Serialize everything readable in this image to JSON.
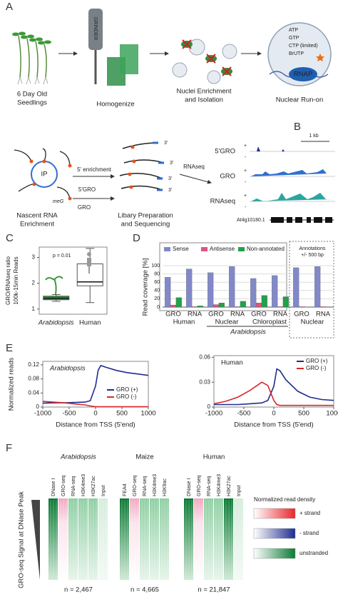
{
  "panel_a": {
    "label": "A",
    "grinder": "GRINDER",
    "seedlings": [
      "6 Day Old",
      "Seedlings"
    ],
    "homogenize": "Homogenize",
    "nuclei": [
      "Nuclei Enrichment",
      "and Isolation"
    ],
    "run_on": "Nuclear Run-on",
    "nucleotides": [
      "ATP",
      "GTP",
      "CTP (limited)",
      "BrUTP"
    ],
    "rnap": "RNAP"
  },
  "panel_b": {
    "label": "B",
    "ip": "IP",
    "enrichment": "5' enrichment",
    "gro5": "5'GRO",
    "gro": "GRO",
    "meg": "meG",
    "nascent": [
      "Nascent RNA",
      "Enrichment"
    ],
    "library": [
      "Libary Preparation",
      "and Sequencing"
    ],
    "three_prime": "3'",
    "rnaseq": "RNAseq",
    "scale": "1 kb",
    "tracks": [
      "5'GRO",
      "GRO",
      "RNAseq"
    ],
    "plus": "+",
    "minus": "-",
    "gene": "At4g10180.1"
  },
  "chart_data": [
    {
      "type": "box",
      "label": "C",
      "y_label": [
        "GRO/RNAseq ratio",
        "100k-15min Reads"
      ],
      "annotation": "p = 0.01",
      "categories": [
        "Arabidopsis",
        "Human"
      ],
      "colors": [
        "#2f9a3e",
        "#ffffff"
      ],
      "boxes": [
        {
          "min": 1.3,
          "q1": 1.36,
          "median": 1.42,
          "q3": 1.5,
          "max": 1.56
        },
        {
          "min": 1.25,
          "q1": 1.9,
          "median": 2.05,
          "q3": 2.75,
          "max": 3.35
        }
      ],
      "ylim": [
        0.8,
        3.4
      ],
      "yticks": [
        1,
        2,
        3
      ]
    },
    {
      "type": "bar",
      "label": "D",
      "y_label": "Read coverage [%]",
      "categories": [
        "GRO",
        "RNA",
        "GRO",
        "RNA",
        "GRO",
        "RNA",
        "GRO",
        "RNA"
      ],
      "groups": [
        {
          "name": "Human",
          "size": 2
        },
        {
          "name": "Nuclear",
          "size": 2
        },
        {
          "name": "Chloroplast",
          "size": 2
        },
        {
          "name": "Nuclear",
          "size": 2
        }
      ],
      "super_group": "Arabidopsis",
      "annotation": [
        "Annotations",
        "+/- 500 bp"
      ],
      "series": [
        {
          "name": "Sense",
          "color": "#8189c9",
          "values": [
            72,
            92,
            83,
            98,
            69,
            76,
            95,
            98
          ]
        },
        {
          "name": "Antisense",
          "color": "#e0557c",
          "values": [
            5,
            1,
            6,
            1,
            10,
            1,
            1,
            1
          ]
        },
        {
          "name": "Non-annotated",
          "color": "#22a04a",
          "values": [
            23,
            3,
            10,
            14,
            28,
            25,
            0,
            0
          ]
        }
      ],
      "ylim": [
        0,
        100
      ],
      "yticks": [
        0,
        20,
        40,
        60,
        80,
        100
      ]
    },
    {
      "type": "line",
      "label": "E",
      "title": "Arabidopsis",
      "y_label": "Normalized reads",
      "x_label": "Distance from TSS (5'end)",
      "x": [
        -1000,
        -800,
        -600,
        -400,
        -200,
        -100,
        0,
        50,
        100,
        200,
        400,
        600,
        800,
        1000
      ],
      "series": [
        {
          "name": "GRO (+)",
          "color": "#1f2d8f",
          "values": [
            0.011,
            0.012,
            0.012,
            0.013,
            0.014,
            0.018,
            0.06,
            0.105,
            0.118,
            0.113,
            0.104,
            0.098,
            0.094,
            0.09
          ]
        },
        {
          "name": "GRO (-)",
          "color": "#d8262b",
          "values": [
            0.016,
            0.014,
            0.012,
            0.009,
            0.006,
            0.003,
            0.001,
            0.001,
            0.001,
            0.001,
            0.001,
            0.001,
            0.001,
            0.001
          ]
        }
      ],
      "xlim": [
        -1000,
        1000
      ],
      "xticks": [
        -1000,
        -500,
        0,
        500,
        1000
      ],
      "ylim": [
        0,
        0.13
      ],
      "yticks": [
        0,
        0.04,
        0.08,
        0.12
      ],
      "legend": "center-right"
    },
    {
      "type": "line",
      "title": "Human",
      "x_label": "Distance from TSS (5'end)",
      "x": [
        -1000,
        -800,
        -600,
        -400,
        -200,
        -100,
        0,
        50,
        100,
        200,
        400,
        600,
        800,
        1000
      ],
      "series": [
        {
          "name": "GRO (+)",
          "color": "#1f2d8f",
          "values": [
            0.003,
            0.003,
            0.003,
            0.004,
            0.005,
            0.008,
            0.025,
            0.046,
            0.044,
            0.033,
            0.019,
            0.012,
            0.009,
            0.008
          ]
        },
        {
          "name": "GRO (-)",
          "color": "#d8262b",
          "values": [
            0.004,
            0.007,
            0.012,
            0.02,
            0.03,
            0.026,
            0.008,
            0.003,
            0.002,
            0.002,
            0.002,
            0.002,
            0.002,
            0.002
          ]
        }
      ],
      "xlim": [
        -1000,
        1000
      ],
      "xticks": [
        -1000,
        -500,
        0,
        500,
        1000
      ],
      "ylim": [
        0,
        0.062
      ],
      "yticks": [
        0,
        0.03,
        0.06
      ],
      "legend": "top-right"
    }
  ],
  "panel_f": {
    "label": "F",
    "y_label": "GRO-seq Signal at DNase Peak",
    "species": [
      {
        "name": "Arabidopsis",
        "columns": [
          "DNase I",
          "GRO-seq",
          "RNA-seq",
          "H3K4me3",
          "H3K27ac",
          "Input"
        ],
        "n": "n = 2,467"
      },
      {
        "name": "Maize",
        "columns": [
          "FEA4",
          "GRO-seq",
          "RNA-seq",
          "H3K4me3",
          "H3K9ac"
        ],
        "n": "n = 4,665"
      },
      {
        "name": "Human",
        "columns": [
          "DNase I",
          "GRO-seq",
          "RNA-seq",
          "H3K4me3",
          "H3K27ac",
          "Input"
        ],
        "n": "n = 21,847"
      }
    ],
    "legend_title": "Normalized read density",
    "legend": [
      "+ strand",
      "- strand",
      "unstranded"
    ]
  }
}
